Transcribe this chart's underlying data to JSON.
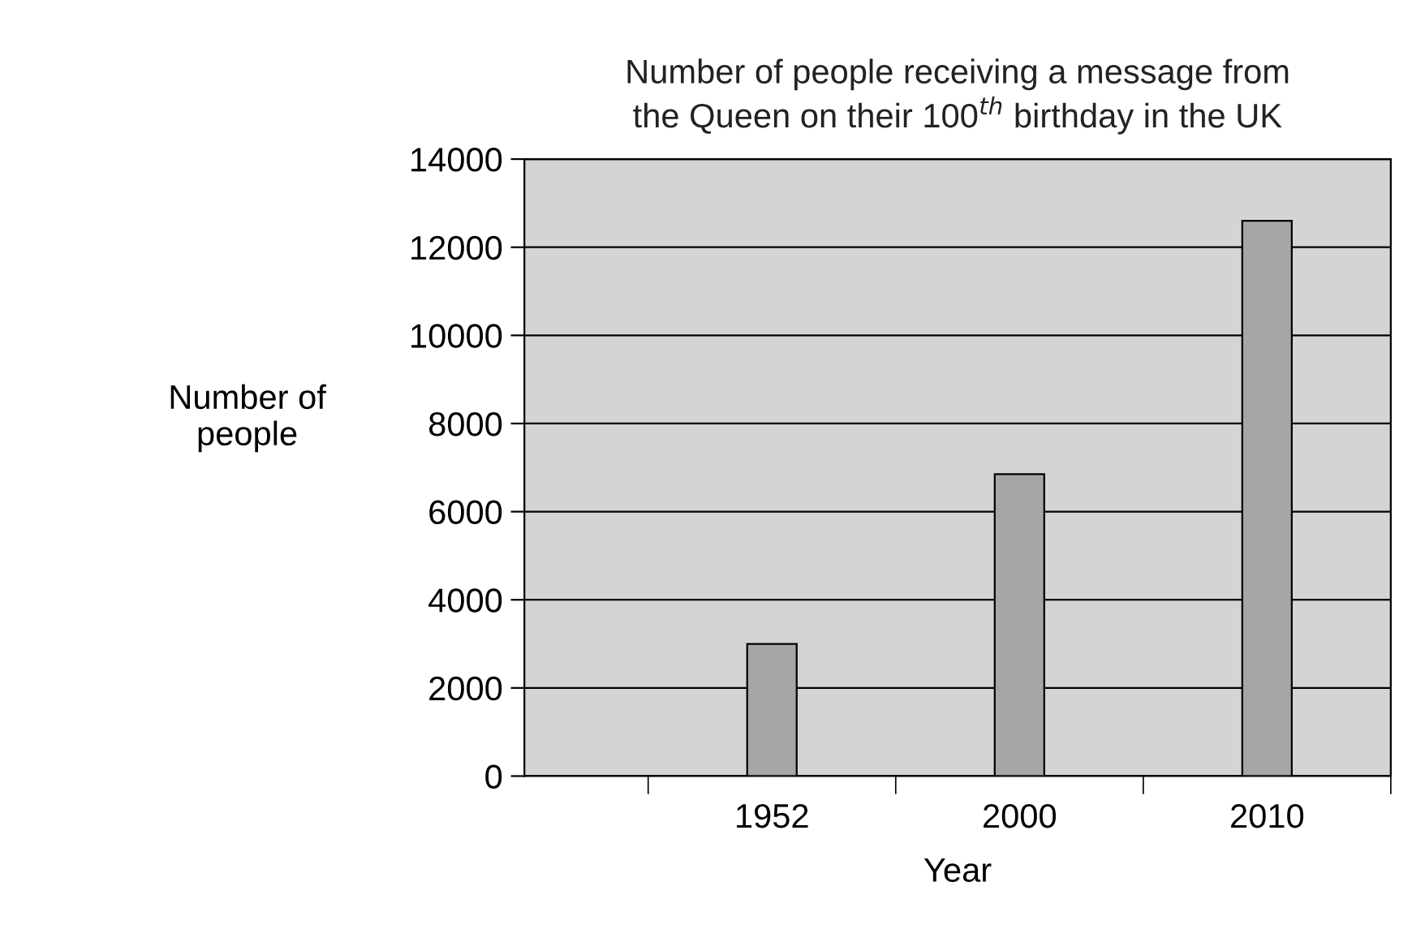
{
  "chart_data": {
    "type": "bar",
    "title": "Number of people receiving a message from\nthe Queen on their 100$^{th}$ birthday in the UK",
    "xlabel": "Year",
    "ylabel": "Number of\npeople",
    "categories": [
      "1952",
      "2000",
      "2010"
    ],
    "values": [
      3000,
      6850,
      12600
    ],
    "color": "#a6a6a6",
    "ylim": [
      0,
      14000
    ],
    "yticks": [
      0,
      2000,
      4000,
      6000,
      8000,
      10000,
      12000,
      14000
    ],
    "grid": "y",
    "legend": false
  }
}
